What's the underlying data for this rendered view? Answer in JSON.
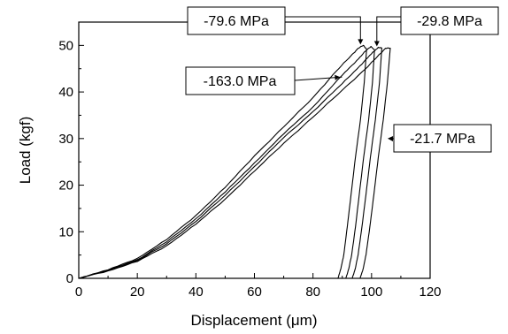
{
  "chart_data": {
    "type": "line",
    "title": "",
    "xlabel": "Displacement (μm)",
    "ylabel": "Load (kgf)",
    "xlim": [
      0,
      120
    ],
    "ylim": [
      0,
      55
    ],
    "xticks": [
      0,
      20,
      40,
      60,
      80,
      100,
      120
    ],
    "yticks": [
      0,
      10,
      20,
      30,
      40,
      50
    ],
    "xtick_labels": [
      "0",
      "20",
      "40",
      "60",
      "80",
      "100",
      "120"
    ],
    "ytick_labels": [
      "0",
      "10",
      "20",
      "30",
      "40",
      "50"
    ],
    "grid": false,
    "legend": "none",
    "series": [
      {
        "label": "-79.6 MPa",
        "color": "#000000",
        "x": [
          0,
          10,
          20,
          30,
          40,
          50,
          60,
          70,
          80,
          88,
          93,
          95.5,
          97.2,
          98.3,
          97.5,
          96.2,
          94.5,
          93,
          91.7,
          90.5,
          89.5,
          88.5
        ],
        "y": [
          0,
          1.8,
          4.3,
          8.3,
          13.5,
          19.5,
          26.3,
          32.5,
          38.8,
          44.5,
          47.8,
          49.4,
          50.0,
          49.2,
          42,
          34,
          26,
          18,
          11,
          5,
          2,
          0
        ]
      },
      {
        "label": "-163.0 MPa",
        "color": "#000000",
        "x": [
          0,
          10,
          20,
          30,
          40,
          50,
          60,
          70,
          80,
          90,
          95,
          98,
          99.8,
          101,
          100.3,
          99,
          97.3,
          95.8,
          94.5,
          93.2,
          92.2,
          91.2
        ],
        "y": [
          0,
          1.8,
          4.0,
          7.8,
          12.8,
          18.5,
          24.8,
          31.0,
          36.8,
          43.6,
          46.8,
          48.8,
          49.8,
          49.0,
          42,
          34,
          26,
          18,
          11,
          5,
          2,
          0
        ]
      },
      {
        "label": "-29.8 MPa",
        "color": "#000000",
        "x": [
          0,
          10,
          20,
          30,
          40,
          50,
          60,
          70,
          80,
          90,
          96,
          100,
          102.3,
          103.5,
          102.7,
          101.3,
          99.6,
          98.1,
          96.7,
          95.4,
          94.4,
          93.4
        ],
        "y": [
          0,
          1.7,
          3.8,
          7.4,
          12.2,
          17.8,
          24.0,
          30.2,
          35.8,
          41.8,
          45.6,
          48.2,
          49.6,
          49.4,
          42,
          34,
          26,
          18,
          11,
          5,
          2,
          0
        ]
      },
      {
        "label": "-21.7 MPa",
        "color": "#000000",
        "x": [
          0,
          10,
          20,
          30,
          40,
          50,
          60,
          70,
          80,
          90,
          98,
          102,
          104.8,
          106.4,
          105.4,
          104,
          102.3,
          100.8,
          99.4,
          98.1,
          97.1,
          96.1
        ],
        "y": [
          0,
          1.6,
          3.6,
          7.0,
          11.6,
          17.0,
          23.0,
          29.0,
          34.6,
          40.4,
          45.0,
          47.6,
          49.4,
          49.4,
          42,
          34,
          26,
          18,
          11,
          5,
          2,
          0
        ]
      }
    ],
    "annotations": [
      {
        "text": "-79.6 MPa",
        "point_to": [
          96.2,
          50.0
        ]
      },
      {
        "text": "-29.8 MPa",
        "point_to": [
          101.8,
          49.6
        ]
      },
      {
        "text": "-163.0 MPa",
        "point_to": [
          89.0,
          43.2
        ]
      },
      {
        "text": "-21.7 MPa",
        "point_to": [
          105.2,
          30.0
        ]
      }
    ]
  }
}
